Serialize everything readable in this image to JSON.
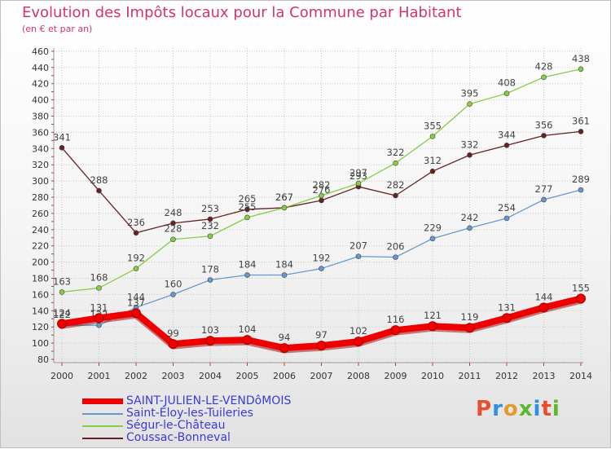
{
  "header": {
    "title": "Evolution des Impôts locaux pour la Commune par Habitant",
    "subtitle": "(en € et par an)"
  },
  "colors": {
    "title": "#d6336c",
    "legend_text": "#3b3bd6",
    "grid": "#c8c8c8"
  },
  "logo": {
    "letters": [
      "P",
      "r",
      "o",
      "x",
      "i",
      "t",
      "i"
    ],
    "colors": [
      "#e6502e",
      "#2e8fe6",
      "#e69a2e",
      "#5cb82e",
      "#2e8fe6",
      "#e6502e",
      "#5cb82e"
    ]
  },
  "chart_data": {
    "type": "line",
    "title": "Evolution des Impôts locaux pour la Commune par Habitant",
    "subtitle": "(en € et par an)",
    "xlabel": "",
    "ylabel": "",
    "categories": [
      "2000",
      "2001",
      "2002",
      "2003",
      "2004",
      "2005",
      "2006",
      "2007",
      "2008",
      "2009",
      "2010",
      "2011",
      "2012",
      "2013",
      "2014"
    ],
    "ylim": [
      80,
      460
    ],
    "yticks": [
      80,
      100,
      120,
      140,
      160,
      180,
      200,
      220,
      240,
      260,
      280,
      300,
      320,
      340,
      360,
      380,
      400,
      420,
      440,
      460
    ],
    "grid": true,
    "legend_position": "bottom-left",
    "series": [
      {
        "name": "SAINT-JULIEN-LE-VENDôMOIS",
        "color": "#ee0000",
        "values": [
          124,
          131,
          137,
          99,
          103,
          104,
          94,
          97,
          102,
          116,
          121,
          119,
          131,
          144,
          155
        ]
      },
      {
        "name": "Saint-Éloy-les-Tuileries",
        "color": "#6699cc",
        "values": [
          122,
          122,
          144,
          160,
          178,
          184,
          184,
          192,
          207,
          206,
          229,
          242,
          254,
          277,
          289
        ]
      },
      {
        "name": "Ségur-le-Château",
        "color": "#88cc44",
        "values": [
          163,
          168,
          192,
          228,
          232,
          255,
          267,
          282,
          297,
          322,
          355,
          395,
          408,
          428,
          438
        ]
      },
      {
        "name": "Coussac-Bonneval",
        "color": "#662222",
        "values": [
          341,
          288,
          236,
          248,
          253,
          265,
          267,
          276,
          293,
          282,
          312,
          332,
          344,
          356,
          361
        ]
      }
    ]
  }
}
